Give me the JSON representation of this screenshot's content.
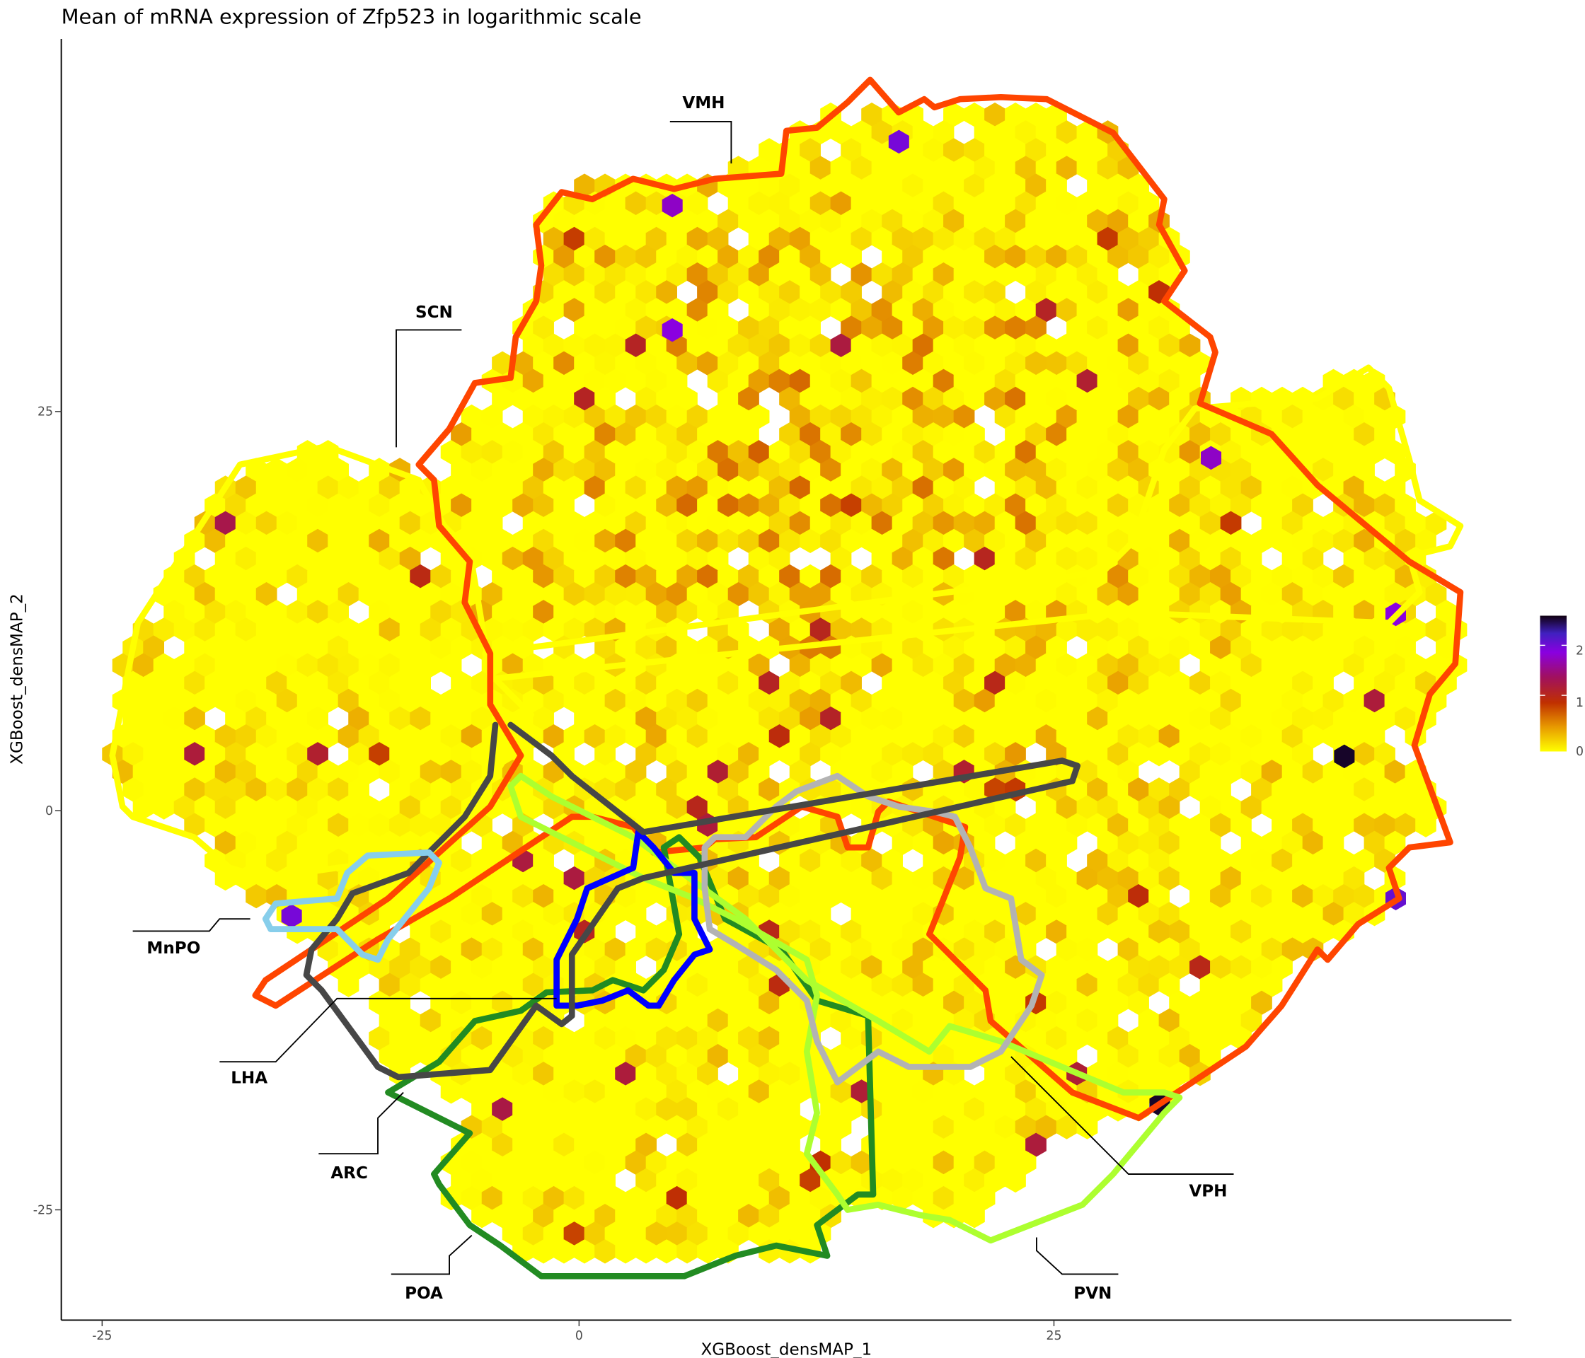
{
  "chart_data": {
    "type": "heatmap",
    "subtype": "hexbin",
    "title": "Mean of mRNA expression of Zfp523 in logarithmic scale",
    "xlabel": "XGBoost_densMAP_1",
    "ylabel": "XGBoost_densMAP_2",
    "xticks": [
      "-25",
      "0",
      "25"
    ],
    "yticks": [
      "25",
      "0",
      "-25"
    ],
    "xlim": [
      -27,
      49
    ],
    "ylim": [
      -32,
      49
    ],
    "grid": false,
    "colorbar": {
      "ticks": [
        "2",
        "1",
        "0"
      ],
      "range": [
        0,
        2.75
      ],
      "colors": [
        "#ffff00",
        "#e89a00",
        "#c03000",
        "#a01060",
        "#8a00e0",
        "#4020c0",
        "#100010"
      ],
      "placement": "right"
    },
    "high_cells": [
      {
        "x": 16.8,
        "y": 41.9,
        "value": 2.1
      },
      {
        "x": 4.9,
        "y": 37.9,
        "value": 1.9
      },
      {
        "x": 4.9,
        "y": 30.1,
        "value": 2.0
      },
      {
        "x": 33.2,
        "y": 22.1,
        "value": 1.9
      },
      {
        "x": 42.9,
        "y": 12.3,
        "value": 2.0
      },
      {
        "x": 42.9,
        "y": -5.5,
        "value": 2.2
      },
      {
        "x": -15.1,
        "y": -6.6,
        "value": 2.1
      },
      {
        "x": 40.2,
        "y": 3.4,
        "value": 2.7
      },
      {
        "x": 30.5,
        "y": -18.4,
        "value": 2.7
      }
    ],
    "regions": [
      {
        "name": "VMH",
        "color": "#ff4500"
      },
      {
        "name": "SCN",
        "color": "#ffff00"
      },
      {
        "name": "MnPO",
        "color": "#87ceeb"
      },
      {
        "name": "LHA",
        "color": "#474747"
      },
      {
        "name": "ARC",
        "color": "#228b22"
      },
      {
        "name": "POA",
        "color": "#228b22"
      },
      {
        "name": "PVN",
        "color": "#adff2f"
      },
      {
        "name": "VPH",
        "color": "#b3b3b3"
      },
      {
        "name": "",
        "color": "#0000ff"
      }
    ]
  }
}
